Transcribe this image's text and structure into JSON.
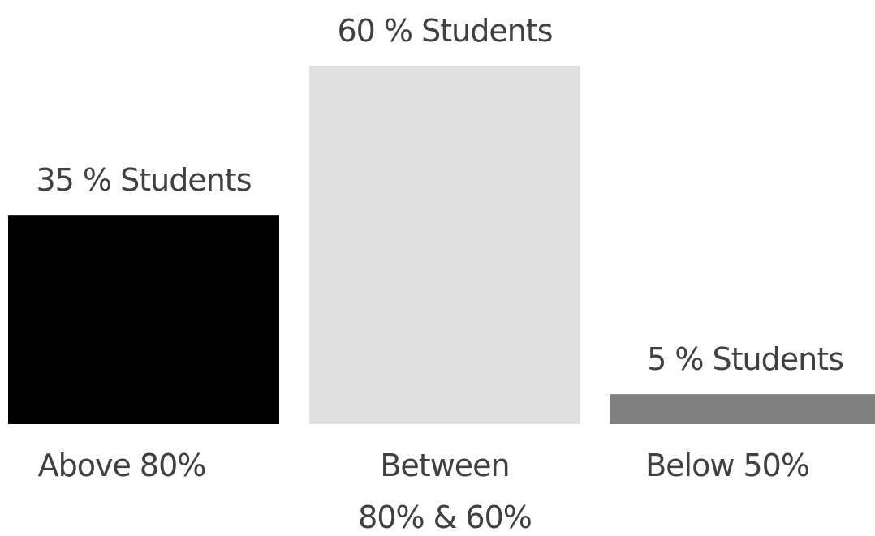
{
  "chart_data": {
    "type": "bar",
    "categories": [
      "Above 80%",
      "Between 80% & 60%",
      "Below 50%"
    ],
    "category_lines": [
      [
        "Above 80%"
      ],
      [
        "Between",
        "80% & 60%"
      ],
      [
        "Below 50%"
      ]
    ],
    "values": [
      35,
      60,
      5
    ],
    "value_labels": [
      "35 % Students",
      "60 % Students",
      "5 % Students"
    ],
    "unit": "%",
    "bar_colors": [
      "#000000",
      "#e0e0e0",
      "#808080"
    ],
    "text_color": "#404040",
    "title": "",
    "xlabel": "",
    "ylabel": "",
    "ylim": [
      0,
      60
    ],
    "grid": false,
    "legend": "none"
  }
}
